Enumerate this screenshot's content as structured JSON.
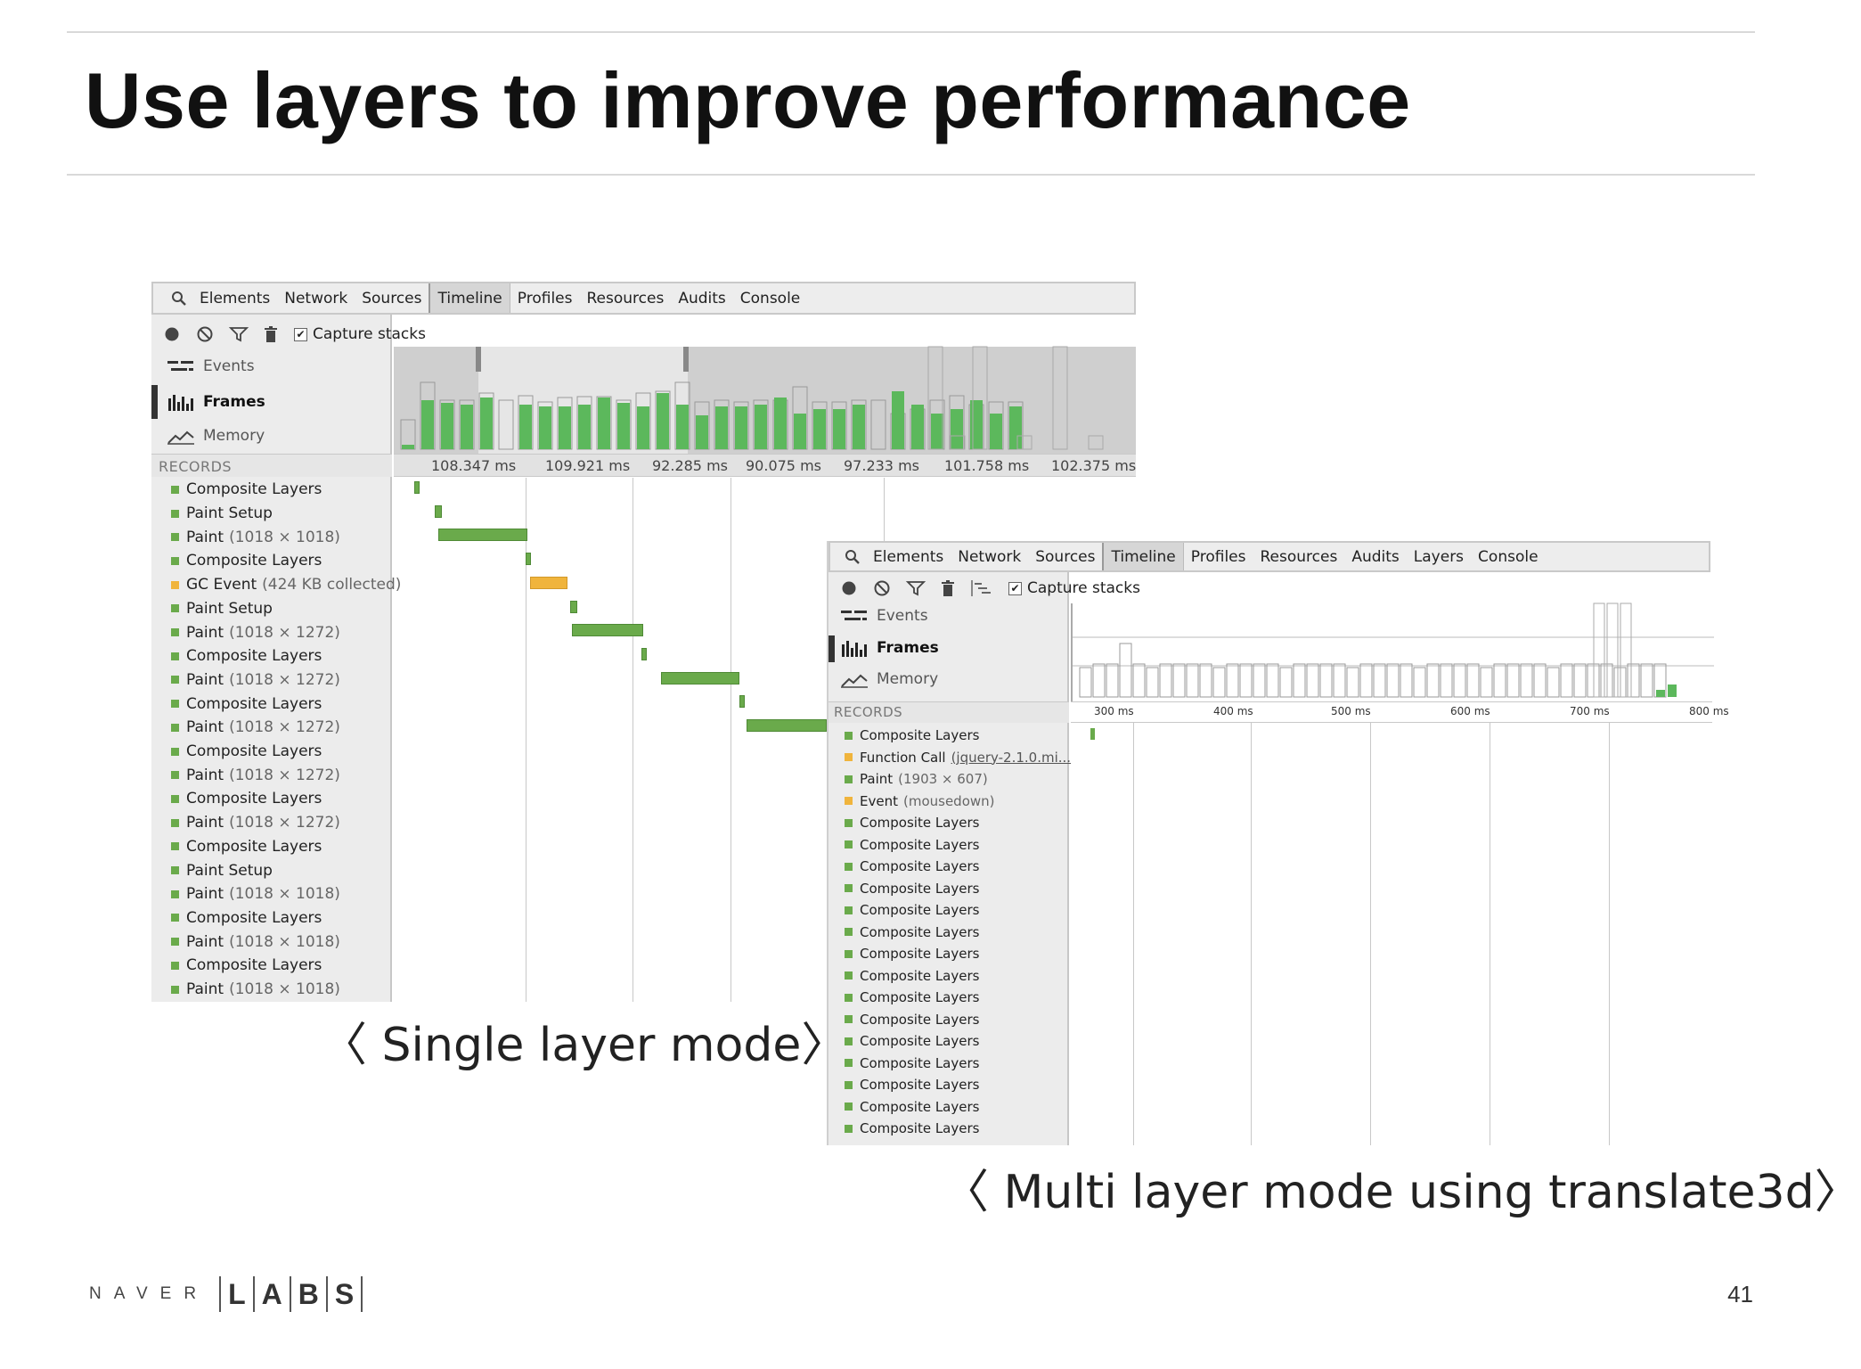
{
  "slide": {
    "title": "Use layers to improve performance",
    "page_number": "41",
    "logo": {
      "word": "NAVER",
      "letters": [
        "L",
        "A",
        "B",
        "S"
      ]
    }
  },
  "panel_single": {
    "tabs": [
      "Elements",
      "Network",
      "Sources",
      "Timeline",
      "Profiles",
      "Resources",
      "Audits",
      "Console"
    ],
    "active_tab": "Timeline",
    "capture_label": "Capture stacks",
    "capture_checked": true,
    "modes": [
      "Events",
      "Frames",
      "Memory"
    ],
    "active_mode": "Frames",
    "records_header": "RECORDS",
    "ruler_labels": [
      "108.347 ms",
      "109.921 ms",
      "92.285 ms",
      "90.075 ms",
      "97.233 ms",
      "101.758 ms",
      "102.375 ms"
    ],
    "records": [
      {
        "name": "Composite Layers",
        "detail": "",
        "color": "#6aaa4b"
      },
      {
        "name": "Paint Setup",
        "detail": "",
        "color": "#6aaa4b"
      },
      {
        "name": "Paint",
        "detail": "(1018 × 1018)",
        "color": "#6aaa4b"
      },
      {
        "name": "Composite Layers",
        "detail": "",
        "color": "#6aaa4b"
      },
      {
        "name": "GC Event",
        "detail": "(424 KB collected)",
        "color": "#f0b43c"
      },
      {
        "name": "Paint Setup",
        "detail": "",
        "color": "#6aaa4b"
      },
      {
        "name": "Paint",
        "detail": "(1018 × 1272)",
        "color": "#6aaa4b"
      },
      {
        "name": "Composite Layers",
        "detail": "",
        "color": "#6aaa4b"
      },
      {
        "name": "Paint",
        "detail": "(1018 × 1272)",
        "color": "#6aaa4b"
      },
      {
        "name": "Composite Layers",
        "detail": "",
        "color": "#6aaa4b"
      },
      {
        "name": "Paint",
        "detail": "(1018 × 1272)",
        "color": "#6aaa4b"
      },
      {
        "name": "Composite Layers",
        "detail": "",
        "color": "#6aaa4b"
      },
      {
        "name": "Paint",
        "detail": "(1018 × 1272)",
        "color": "#6aaa4b"
      },
      {
        "name": "Composite Layers",
        "detail": "",
        "color": "#6aaa4b"
      },
      {
        "name": "Paint",
        "detail": "(1018 × 1272)",
        "color": "#6aaa4b"
      },
      {
        "name": "Composite Layers",
        "detail": "",
        "color": "#6aaa4b"
      },
      {
        "name": "Paint Setup",
        "detail": "",
        "color": "#6aaa4b"
      },
      {
        "name": "Paint",
        "detail": "(1018 × 1018)",
        "color": "#6aaa4b"
      },
      {
        "name": "Composite Layers",
        "detail": "",
        "color": "#6aaa4b"
      },
      {
        "name": "Paint",
        "detail": "(1018 × 1018)",
        "color": "#6aaa4b"
      },
      {
        "name": "Composite Layers",
        "detail": "",
        "color": "#6aaa4b"
      },
      {
        "name": "Paint",
        "detail": "(1018 × 1018)",
        "color": "#6aaa4b"
      }
    ],
    "caption": "〈 Single layer mode〉"
  },
  "panel_multi": {
    "tabs": [
      "Elements",
      "Network",
      "Sources",
      "Timeline",
      "Profiles",
      "Resources",
      "Audits",
      "Layers",
      "Console"
    ],
    "active_tab": "Timeline",
    "capture_label": "Capture stacks",
    "capture_checked": true,
    "modes": [
      "Events",
      "Frames",
      "Memory"
    ],
    "active_mode": "Frames",
    "records_header": "RECORDS",
    "ruler_labels": [
      "300 ms",
      "400 ms",
      "500 ms",
      "600 ms",
      "700 ms",
      "800 ms"
    ],
    "records": [
      {
        "name": "Composite Layers",
        "detail": "",
        "color": "#6aaa4b"
      },
      {
        "name": "Function Call",
        "detail": "(jquery-2.1.0.mi...",
        "color": "#f0b43c",
        "link": true
      },
      {
        "name": "Paint",
        "detail": "(1903 × 607)",
        "color": "#6aaa4b"
      },
      {
        "name": "Event",
        "detail": "(mousedown)",
        "color": "#f0b43c"
      },
      {
        "name": "Composite Layers",
        "detail": "",
        "color": "#6aaa4b"
      },
      {
        "name": "Composite Layers",
        "detail": "",
        "color": "#6aaa4b"
      },
      {
        "name": "Composite Layers",
        "detail": "",
        "color": "#6aaa4b"
      },
      {
        "name": "Composite Layers",
        "detail": "",
        "color": "#6aaa4b"
      },
      {
        "name": "Composite Layers",
        "detail": "",
        "color": "#6aaa4b"
      },
      {
        "name": "Composite Layers",
        "detail": "",
        "color": "#6aaa4b"
      },
      {
        "name": "Composite Layers",
        "detail": "",
        "color": "#6aaa4b"
      },
      {
        "name": "Composite Layers",
        "detail": "",
        "color": "#6aaa4b"
      },
      {
        "name": "Composite Layers",
        "detail": "",
        "color": "#6aaa4b"
      },
      {
        "name": "Composite Layers",
        "detail": "",
        "color": "#6aaa4b"
      },
      {
        "name": "Composite Layers",
        "detail": "",
        "color": "#6aaa4b"
      },
      {
        "name": "Composite Layers",
        "detail": "",
        "color": "#6aaa4b"
      },
      {
        "name": "Composite Layers",
        "detail": "",
        "color": "#6aaa4b"
      },
      {
        "name": "Composite Layers",
        "detail": "",
        "color": "#6aaa4b"
      },
      {
        "name": "Composite Layers",
        "detail": "",
        "color": "#6aaa4b"
      }
    ],
    "caption": "〈 Multi layer mode using translate3d〉"
  },
  "colors": {
    "paint_green": "#6aaa4b",
    "scripting_yellow": "#f0b43c",
    "frame_bar_green": "#5cb85c"
  }
}
